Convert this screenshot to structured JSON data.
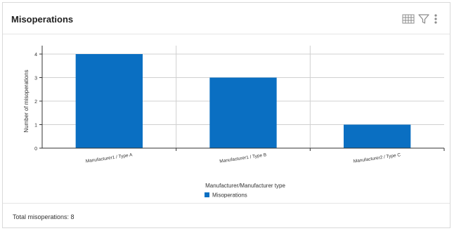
{
  "header": {
    "title": "Misoperations"
  },
  "toolbar": {
    "table_icon": "table-icon",
    "filter_icon": "filter-icon",
    "more_icon": "more-vertical-icon"
  },
  "colors": {
    "bar": "#0a6fc2",
    "grid": "#d0d0d0",
    "axis": "#333333"
  },
  "chart_data": {
    "type": "bar",
    "categories": [
      "Manufacturer1 / Type A",
      "Manufacturer1 / Type B",
      "Manufacturer2 / Type C"
    ],
    "series": [
      {
        "name": "Misoperations",
        "values": [
          4,
          3,
          1
        ]
      }
    ],
    "xlabel": "Manufacturer/Manufacturer type",
    "ylabel": "Number of misoperations",
    "ylim": [
      0,
      4
    ],
    "yticks": [
      0,
      1,
      2,
      3,
      4
    ],
    "grid": true,
    "legend": "bottom-center"
  },
  "footer": {
    "total_label": "Total misoperations: 8"
  }
}
